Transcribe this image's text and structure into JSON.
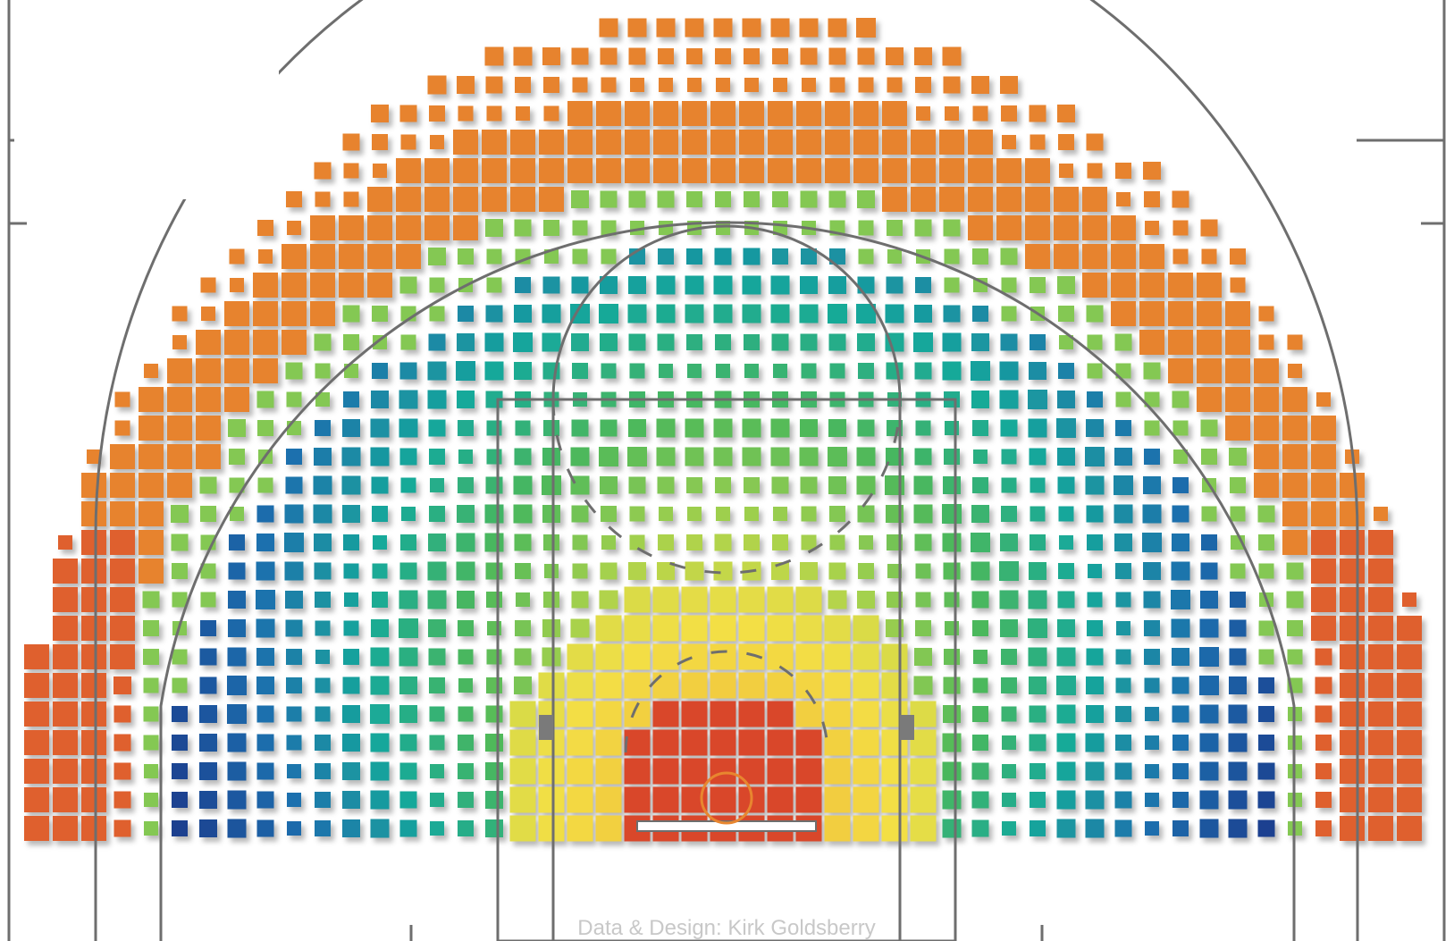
{
  "credit": "Data & Design: Kirk Goldsberry",
  "chart_data": {
    "type": "heatmap",
    "title": "",
    "xlabel": "",
    "ylabel": "",
    "description_of_encoding": "",
    "color_scale": [
      "#d9472b",
      "#e8862f",
      "#f1b33a",
      "#f3df45",
      "#a9d24c",
      "#4cb85b",
      "#17a99a",
      "#1f6fae",
      "#1d3f8f"
    ],
    "court": {
      "rim_color": "#e8862f",
      "line_color": "#6e6e6e"
    }
  }
}
